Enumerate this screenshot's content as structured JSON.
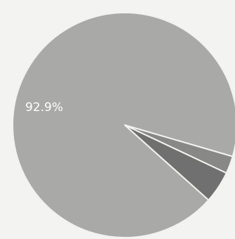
{
  "chart_data": {
    "type": "pie",
    "slices": [
      {
        "value": 92.9,
        "label": "92.9%",
        "color": "#a9a9a8"
      },
      {
        "value": 4.6,
        "label": "",
        "color": "#6f706f"
      },
      {
        "value": 2.5,
        "label": "",
        "color": "#888987"
      }
    ],
    "slice_border_color": "#f2f2f0",
    "background_color": "#f3f3f1"
  }
}
